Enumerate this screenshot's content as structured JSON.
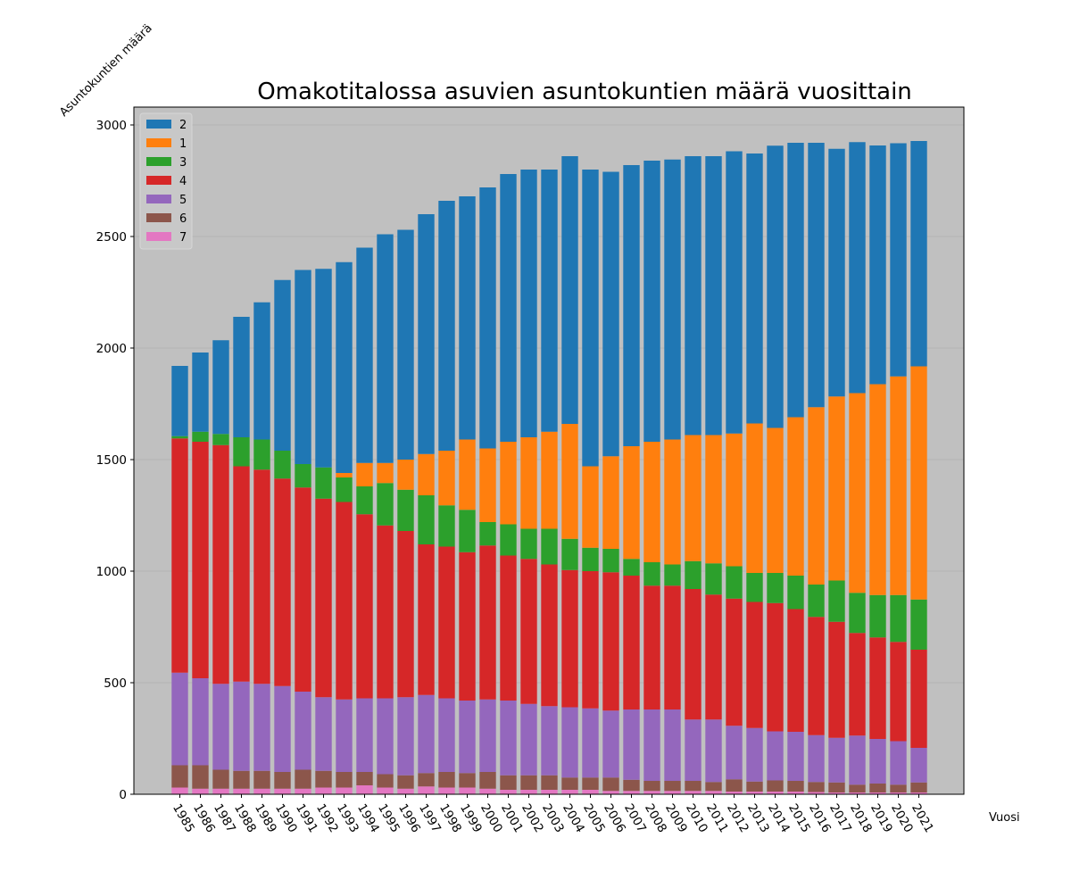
{
  "chart_data": {
    "type": "bar",
    "stacked": true,
    "title": "Omakotitalossa asuvien asuntokuntien määrä vuosittain",
    "xlabel": "Vuosi",
    "ylabel": "Asuntokuntien määrä",
    "ylim": [
      0,
      3080
    ],
    "yticks": [
      0,
      500,
      1000,
      1500,
      2000,
      2500,
      3000
    ],
    "grid": true,
    "legend_position": "top-left",
    "background": "#c0c0c0",
    "categories": [
      "1985",
      "1986",
      "1987",
      "1988",
      "1989",
      "1990",
      "1991",
      "1992",
      "1993",
      "1994",
      "1995",
      "1996",
      "1997",
      "1998",
      "1999",
      "2000",
      "2001",
      "2002",
      "2003",
      "2004",
      "2005",
      "2006",
      "2007",
      "2008",
      "2009",
      "2010",
      "2011",
      "2012",
      "2013",
      "2014",
      "2015",
      "2016",
      "2017",
      "2018",
      "2019",
      "2020",
      "2021"
    ],
    "series": [
      {
        "name": "7",
        "color": "#e377c2",
        "values": [
          30,
          25,
          25,
          25,
          25,
          25,
          25,
          30,
          30,
          40,
          30,
          25,
          35,
          30,
          30,
          25,
          20,
          20,
          20,
          20,
          20,
          15,
          15,
          15,
          15,
          15,
          15,
          12,
          12,
          12,
          12,
          10,
          8,
          8,
          8,
          8,
          8
        ]
      },
      {
        "name": "6",
        "color": "#8c564b",
        "values": [
          100,
          105,
          85,
          80,
          80,
          75,
          85,
          75,
          70,
          60,
          60,
          60,
          60,
          70,
          65,
          75,
          65,
          65,
          65,
          55,
          55,
          60,
          50,
          45,
          45,
          45,
          40,
          55,
          45,
          50,
          48,
          45,
          45,
          35,
          40,
          35,
          45
        ]
      },
      {
        "name": "5",
        "color": "#9467bd",
        "values": [
          415,
          390,
          385,
          400,
          390,
          385,
          350,
          330,
          325,
          330,
          340,
          350,
          350,
          330,
          325,
          325,
          335,
          320,
          310,
          315,
          310,
          300,
          315,
          320,
          320,
          275,
          280,
          240,
          240,
          220,
          220,
          210,
          200,
          220,
          200,
          195,
          155
        ]
      },
      {
        "name": "4",
        "color": "#d62728",
        "values": [
          1050,
          1060,
          1070,
          965,
          960,
          930,
          915,
          890,
          885,
          825,
          775,
          745,
          675,
          680,
          665,
          690,
          650,
          650,
          635,
          615,
          615,
          620,
          600,
          555,
          555,
          585,
          560,
          570,
          565,
          575,
          550,
          530,
          520,
          460,
          455,
          445,
          440
        ]
      },
      {
        "name": "3",
        "color": "#2ca02c",
        "values": [
          10,
          45,
          50,
          130,
          135,
          125,
          105,
          140,
          110,
          125,
          190,
          185,
          220,
          185,
          190,
          105,
          140,
          135,
          160,
          140,
          105,
          105,
          75,
          105,
          95,
          125,
          140,
          145,
          130,
          135,
          150,
          145,
          185,
          180,
          190,
          210,
          225
        ]
      },
      {
        "name": "1",
        "color": "#ff7f0e",
        "values": [
          0,
          0,
          0,
          0,
          0,
          0,
          0,
          0,
          20,
          105,
          90,
          135,
          185,
          245,
          315,
          330,
          370,
          410,
          435,
          515,
          365,
          415,
          505,
          540,
          560,
          565,
          575,
          595,
          670,
          650,
          710,
          795,
          825,
          895,
          945,
          980,
          1045
        ]
      },
      {
        "name": "2",
        "color": "#1f77b4",
        "values": [
          315,
          355,
          420,
          540,
          615,
          765,
          870,
          890,
          945,
          965,
          1025,
          1030,
          1075,
          1120,
          1090,
          1170,
          1200,
          1200,
          1175,
          1200,
          1330,
          1275,
          1260,
          1260,
          1255,
          1250,
          1250,
          1265,
          1210,
          1265,
          1230,
          1185,
          1110,
          1125,
          1070,
          1045,
          1010
        ]
      }
    ]
  }
}
